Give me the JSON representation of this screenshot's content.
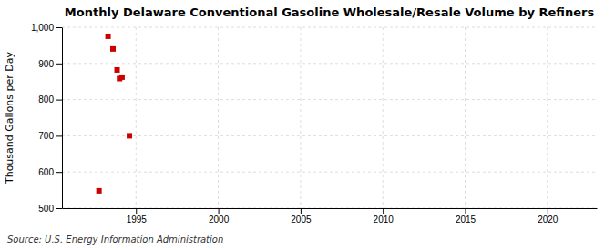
{
  "chart_data": {
    "type": "scatter",
    "title": "Monthly Delaware Conventional Gasoline Wholesale/Resale Volume by Refiners",
    "ylabel": "Thousand Gallons per Day",
    "annotation": "Source: U.S. Energy Information Administration",
    "x": [
      1992.75,
      1993.3,
      1993.6,
      1993.85,
      1994.0,
      1994.15,
      1994.6
    ],
    "values": [
      548,
      975,
      940,
      882,
      858,
      862,
      700
    ],
    "color": "#cc0000",
    "marker": "square",
    "xlim": [
      1990.5,
      2023
    ],
    "ylim": [
      500,
      1000
    ],
    "xticks": [
      1995,
      2000,
      2005,
      2010,
      2015,
      2020
    ],
    "yticks": [
      500,
      600,
      700,
      800,
      900,
      {
        "value": 1000,
        "label": "1,000"
      }
    ],
    "grid": true
  }
}
